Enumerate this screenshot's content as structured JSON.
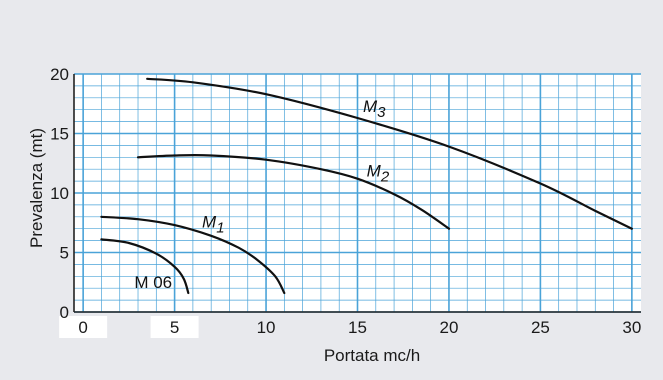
{
  "colors": {
    "background": "#e8e9ed",
    "plot_background": "#ffffff",
    "grid": "#4aa3d8",
    "curve": "#111111",
    "axis": "#222222"
  },
  "chart_data": {
    "type": "line",
    "title": "",
    "xlabel": "Portata mc/h",
    "ylabel": "Prevalenza (mt)",
    "xlim": [
      -0.5,
      30.5
    ],
    "ylim": [
      0,
      20
    ],
    "x_ticks": [
      "0",
      "5",
      "10",
      "15",
      "20",
      "25",
      "30"
    ],
    "y_ticks": [
      "0",
      "5",
      "10",
      "15",
      "20"
    ],
    "grid": true,
    "grid_minor_x": 1,
    "grid_minor_y": 1,
    "series": [
      {
        "name": "M 06",
        "x": [
          1.0,
          2.5,
          4.0,
          5.0,
          5.5,
          5.75
        ],
        "y": [
          6.1,
          5.8,
          4.9,
          3.8,
          2.8,
          1.6
        ]
      },
      {
        "name": "M1",
        "x": [
          1.0,
          3.0,
          5.0,
          7.0,
          8.5,
          9.5,
          10.5,
          11.0
        ],
        "y": [
          8.0,
          7.8,
          7.3,
          6.4,
          5.4,
          4.4,
          3.0,
          1.6
        ]
      },
      {
        "name": "M2",
        "x": [
          3.0,
          5.0,
          7.0,
          10.0,
          13.0,
          15.0,
          17.0,
          18.5,
          20.0
        ],
        "y": [
          13.0,
          13.15,
          13.15,
          12.8,
          12.0,
          11.2,
          9.9,
          8.6,
          7.0
        ]
      },
      {
        "name": "M3",
        "x": [
          3.5,
          6.0,
          10.0,
          15.0,
          20.0,
          25.0,
          28.0,
          30.0
        ],
        "y": [
          19.6,
          19.3,
          18.3,
          16.3,
          13.9,
          10.8,
          8.5,
          7.0
        ]
      }
    ],
    "series_labels": [
      {
        "series": "M 06",
        "text": "M 06",
        "style": "upright",
        "x": 2.8,
        "y": 2.0
      },
      {
        "series": "M1",
        "text": "M",
        "sub": "1",
        "style": "italic",
        "x": 6.5,
        "y": 7.1
      },
      {
        "series": "M2",
        "text": "M",
        "sub": "2",
        "style": "italic",
        "x": 15.5,
        "y": 11.4
      },
      {
        "series": "M3",
        "text": "M",
        "sub": "3",
        "style": "italic",
        "x": 15.3,
        "y": 16.8
      }
    ]
  }
}
